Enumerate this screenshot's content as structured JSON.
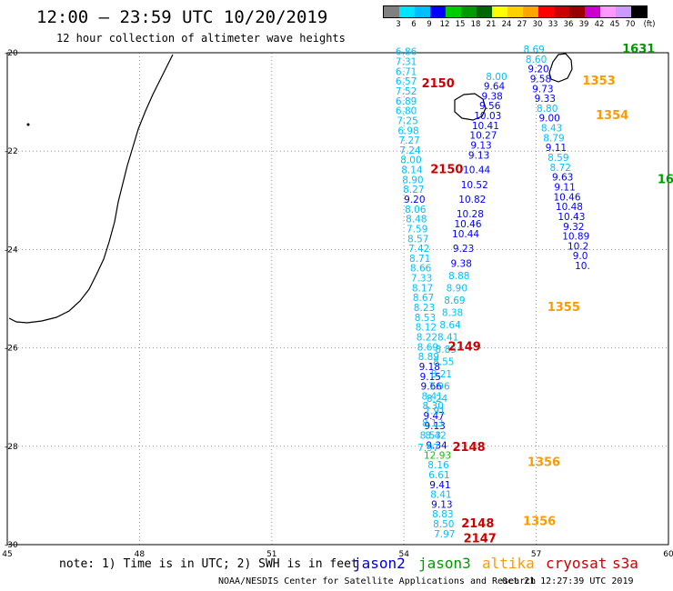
{
  "header": {
    "title": "12:00 – 23:59 UTC 10/20/2019",
    "subtitle": "12 hour collection of altimeter wave heights"
  },
  "colorbar": {
    "unit_label": "(ft)",
    "ticks": [
      "3",
      "6",
      "9",
      "12",
      "15",
      "18",
      "21",
      "24",
      "27",
      "30",
      "33",
      "36",
      "39",
      "42",
      "45",
      "70"
    ],
    "colors": [
      "#808080",
      "#00e5ff",
      "#00bfff",
      "#0000ff",
      "#00cc00",
      "#009900",
      "#006600",
      "#ffff00",
      "#ffd000",
      "#ffa500",
      "#ff0000",
      "#cc0000",
      "#990000",
      "#cc00cc",
      "#ff99ff",
      "#cc99ff",
      "#000000"
    ]
  },
  "axes": {
    "lon_labels": [
      "45",
      "48",
      "51",
      "54",
      "57",
      "60"
    ],
    "lat_labels": [
      "-20",
      "-22",
      "-24",
      "-26",
      "-28",
      "-30"
    ],
    "lon_range": [
      45,
      60
    ],
    "lat_range": [
      -30,
      -20
    ],
    "grid": "dotted"
  },
  "legend": {
    "note": "note: 1) Time is in UTC; 2) SWH is in feet",
    "satellites": [
      {
        "name": "jason2",
        "color": "#0000cc"
      },
      {
        "name": "jason3",
        "color": "#009900"
      },
      {
        "name": "altika",
        "color": "#ff9900"
      },
      {
        "name": "cryosat",
        "color": "#cc0000"
      },
      {
        "name": "s3a",
        "color": "#cc0000"
      }
    ]
  },
  "footer": {
    "credit": "NOAA/NESDIS Center for Satellite Applications and Research",
    "timestamp": "Oct 21 12:27:39 UTC 2019"
  },
  "tracks": [
    {
      "name": "track-west",
      "lon": [
        54.05,
        54.05,
        54.05,
        54.05,
        54.05,
        54.05,
        54.05,
        54.08,
        54.1,
        54.12,
        54.14,
        54.16,
        54.18,
        54.2,
        54.22,
        54.24,
        54.26,
        54.28,
        54.3,
        54.32,
        54.34,
        54.36,
        54.38,
        54.4,
        54.42,
        54.44,
        54.46,
        54.48,
        54.5,
        54.52,
        54.54,
        54.56,
        54.58,
        54.6,
        54.62,
        54.64,
        54.66,
        54.68,
        54.7,
        54.72,
        54.74,
        54.76,
        54.78,
        54.8,
        54.82,
        54.84,
        54.86,
        54.88,
        54.9,
        54.92
      ],
      "lat": [
        -20.05,
        -20.25,
        -20.45,
        -20.65,
        -20.85,
        -21.05,
        -21.25,
        -21.45,
        -21.65,
        -21.85,
        -22.05,
        -22.25,
        -22.45,
        -22.65,
        -22.85,
        -23.05,
        -23.25,
        -23.45,
        -23.65,
        -23.85,
        -24.05,
        -24.25,
        -24.45,
        -24.65,
        -24.85,
        -25.05,
        -25.25,
        -25.45,
        -25.65,
        -25.85,
        -26.05,
        -26.25,
        -26.45,
        -26.65,
        -26.85,
        -27.05,
        -27.25,
        -27.45,
        -27.65,
        -27.85,
        -28.05,
        -28.25,
        -28.45,
        -28.65,
        -28.85,
        -29.05,
        -29.25,
        -29.45,
        -29.65,
        -29.85
      ],
      "swh": [
        "6.86",
        "7.31",
        "6.71",
        "6.57",
        "7.52",
        "6.89",
        "6.80",
        "7.25",
        "6.98",
        "7.27",
        "7.24",
        "8.00",
        "8.14",
        "8.90",
        "8.27",
        "9.20",
        "8.06",
        "8.48",
        "7.59",
        "8.57",
        "7.42",
        "8.71",
        "8.66",
        "7.33",
        "8.17",
        "8.67",
        "8.23",
        "8.53",
        "8.12",
        "8.22",
        "8.69",
        "8.89",
        "9.18",
        "9.15",
        "9.66",
        "8.41",
        "8.30",
        "9.47",
        "9.13",
        "8.42",
        "9.34",
        "12.93",
        "8.16",
        "6.61",
        "9.41",
        "8.41",
        "9.13",
        "8.83",
        "8.50",
        "7.97"
      ]
    },
    {
      "name": "track-middle",
      "lon": [
        56.1,
        56.05,
        56.0,
        55.95,
        55.9,
        55.85,
        55.8,
        55.75,
        55.7,
        55.65,
        55.6,
        55.55,
        55.5,
        55.45,
        55.4,
        55.35,
        55.3,
        55.25,
        55.2,
        55.15,
        55.1,
        55.05,
        55.0,
        54.95,
        54.9,
        54.85,
        54.8,
        54.75,
        54.7,
        54.65,
        54.6,
        54.55
      ],
      "lat": [
        -20.55,
        -20.75,
        -20.95,
        -21.15,
        -21.35,
        -21.55,
        -21.75,
        -21.95,
        -22.15,
        -22.45,
        -22.75,
        -23.05,
        -23.35,
        -23.55,
        -23.75,
        -24.05,
        -24.35,
        -24.6,
        -24.85,
        -25.1,
        -25.35,
        -25.6,
        -25.85,
        -26.1,
        -26.35,
        -26.6,
        -26.85,
        -27.1,
        -27.35,
        -27.6,
        -27.85,
        -28.1
      ],
      "swh": [
        "8.00",
        "9.64",
        "9.38",
        "9.56",
        "10.03",
        "10.41",
        "10.27",
        "9.13",
        "9.13",
        "10.44",
        "10.52",
        "10.82",
        "10.28",
        "10.46",
        "10.44",
        "9.23",
        "9.38",
        "8.88",
        "8.90",
        "8.69",
        "8.38",
        "8.64",
        "8.41",
        "8.85",
        "8.55",
        "8.21",
        "7.96",
        "8.24",
        "7.91",
        "8.13",
        "8.53",
        "7.97"
      ]
    },
    {
      "name": "track-east",
      "lon": [
        56.95,
        57.0,
        57.05,
        57.1,
        57.15,
        57.2,
        57.25,
        57.3,
        57.35,
        57.4,
        57.45,
        57.5,
        57.55,
        57.6,
        57.65,
        57.7,
        57.75,
        57.8,
        57.85,
        57.9,
        57.95,
        58.0,
        58.05
      ],
      "lat": [
        -20.0,
        -20.2,
        -20.4,
        -20.6,
        -20.8,
        -21.0,
        -21.2,
        -21.4,
        -21.6,
        -21.8,
        -22.0,
        -22.2,
        -22.4,
        -22.6,
        -22.8,
        -23.0,
        -23.2,
        -23.4,
        -23.6,
        -23.8,
        -24.0,
        -24.2,
        -24.4
      ],
      "swh": [
        "8.69",
        "8.60",
        "9.20",
        "9.58",
        "9.73",
        "9.33",
        "8.80",
        "9.00",
        "8.43",
        "8.79",
        "9.11",
        "8.59",
        "8.72",
        "9.63",
        "9.11",
        "10.46",
        "10.48",
        "10.43",
        "9.32",
        "10.89",
        "10.2",
        "9.0",
        "10."
      ]
    }
  ],
  "time_labels": [
    {
      "text": "2150",
      "sat": "cryosat",
      "lon": 54.4,
      "lat": -20.7
    },
    {
      "text": "2150",
      "sat": "cryosat",
      "lon": 54.6,
      "lat": -22.45
    },
    {
      "text": "2149",
      "sat": "cryosat",
      "lon": 55.0,
      "lat": -26.05
    },
    {
      "text": "2148",
      "sat": "cryosat",
      "lon": 55.1,
      "lat": -28.1
    },
    {
      "text": "2148",
      "sat": "cryosat",
      "lon": 55.3,
      "lat": -29.65
    },
    {
      "text": "2147",
      "sat": "cryosat",
      "lon": 55.35,
      "lat": -29.95
    },
    {
      "text": "1355",
      "sat": "altika",
      "lon": 57.25,
      "lat": -25.25
    },
    {
      "text": "1356",
      "sat": "altika",
      "lon": 56.8,
      "lat": -28.4
    },
    {
      "text": "1356",
      "sat": "altika",
      "lon": 56.7,
      "lat": -29.6
    },
    {
      "text": "1353",
      "sat": "altika",
      "lon": 58.05,
      "lat": -20.65
    },
    {
      "text": "1354",
      "sat": "altika",
      "lon": 58.35,
      "lat": -21.35
    },
    {
      "text": "1631",
      "sat": "jason3",
      "lon": 58.95,
      "lat": -20.0
    },
    {
      "text": "16",
      "sat": "jason3",
      "lon": 59.75,
      "lat": -22.65
    }
  ]
}
